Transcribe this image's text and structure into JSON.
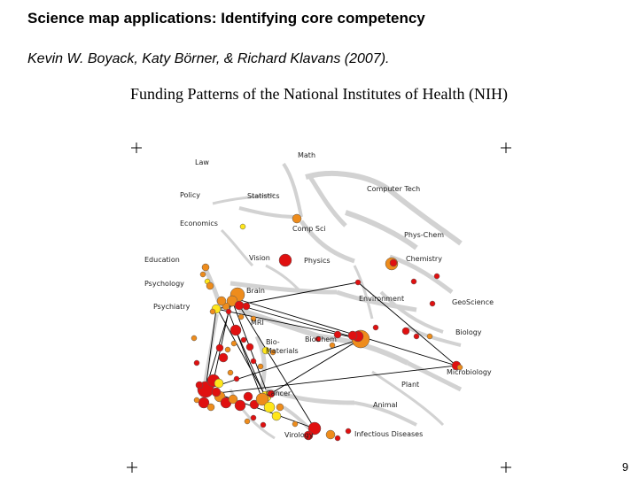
{
  "slide": {
    "title": "Science map applications: Identifying core competency",
    "authors": "Kevin W. Boyack, Katy Börner, & Richard Klavans (2007).",
    "subtitle": "Funding Patterns of the National Institutes of Health (NIH)",
    "page_number": "9"
  },
  "map": {
    "labels": {
      "math": "Math",
      "law": "Law",
      "policy": "Policy",
      "statistics": "Statistics",
      "computer_tech": "Computer Tech",
      "economics": "Economics",
      "comp_sci": "Comp Sci",
      "phys_chem": "Phys-Chem",
      "education": "Education",
      "vision": "Vision",
      "physics": "Physics",
      "chemistry": "Chemistry",
      "psychology": "Psychology",
      "brain": "Brain",
      "environment": "Environment",
      "geoscience": "GeoScience",
      "psychiatry": "Psychiatry",
      "mri": "MRI",
      "biology": "Biology",
      "biomaterials": "Bio-\nMaterials",
      "biochem": "BioChem",
      "microbiology": "Microbiology",
      "plant": "Plant",
      "cancer": "Cancer",
      "animal": "Animal",
      "virology": "Virology",
      "infectious_diseases": "Infectious Diseases"
    },
    "colors": {
      "network": "#d2d2d2",
      "red": "#e01010",
      "orange": "#ee8c1c",
      "yellow": "#ffe61a",
      "link": "#000000"
    }
  }
}
